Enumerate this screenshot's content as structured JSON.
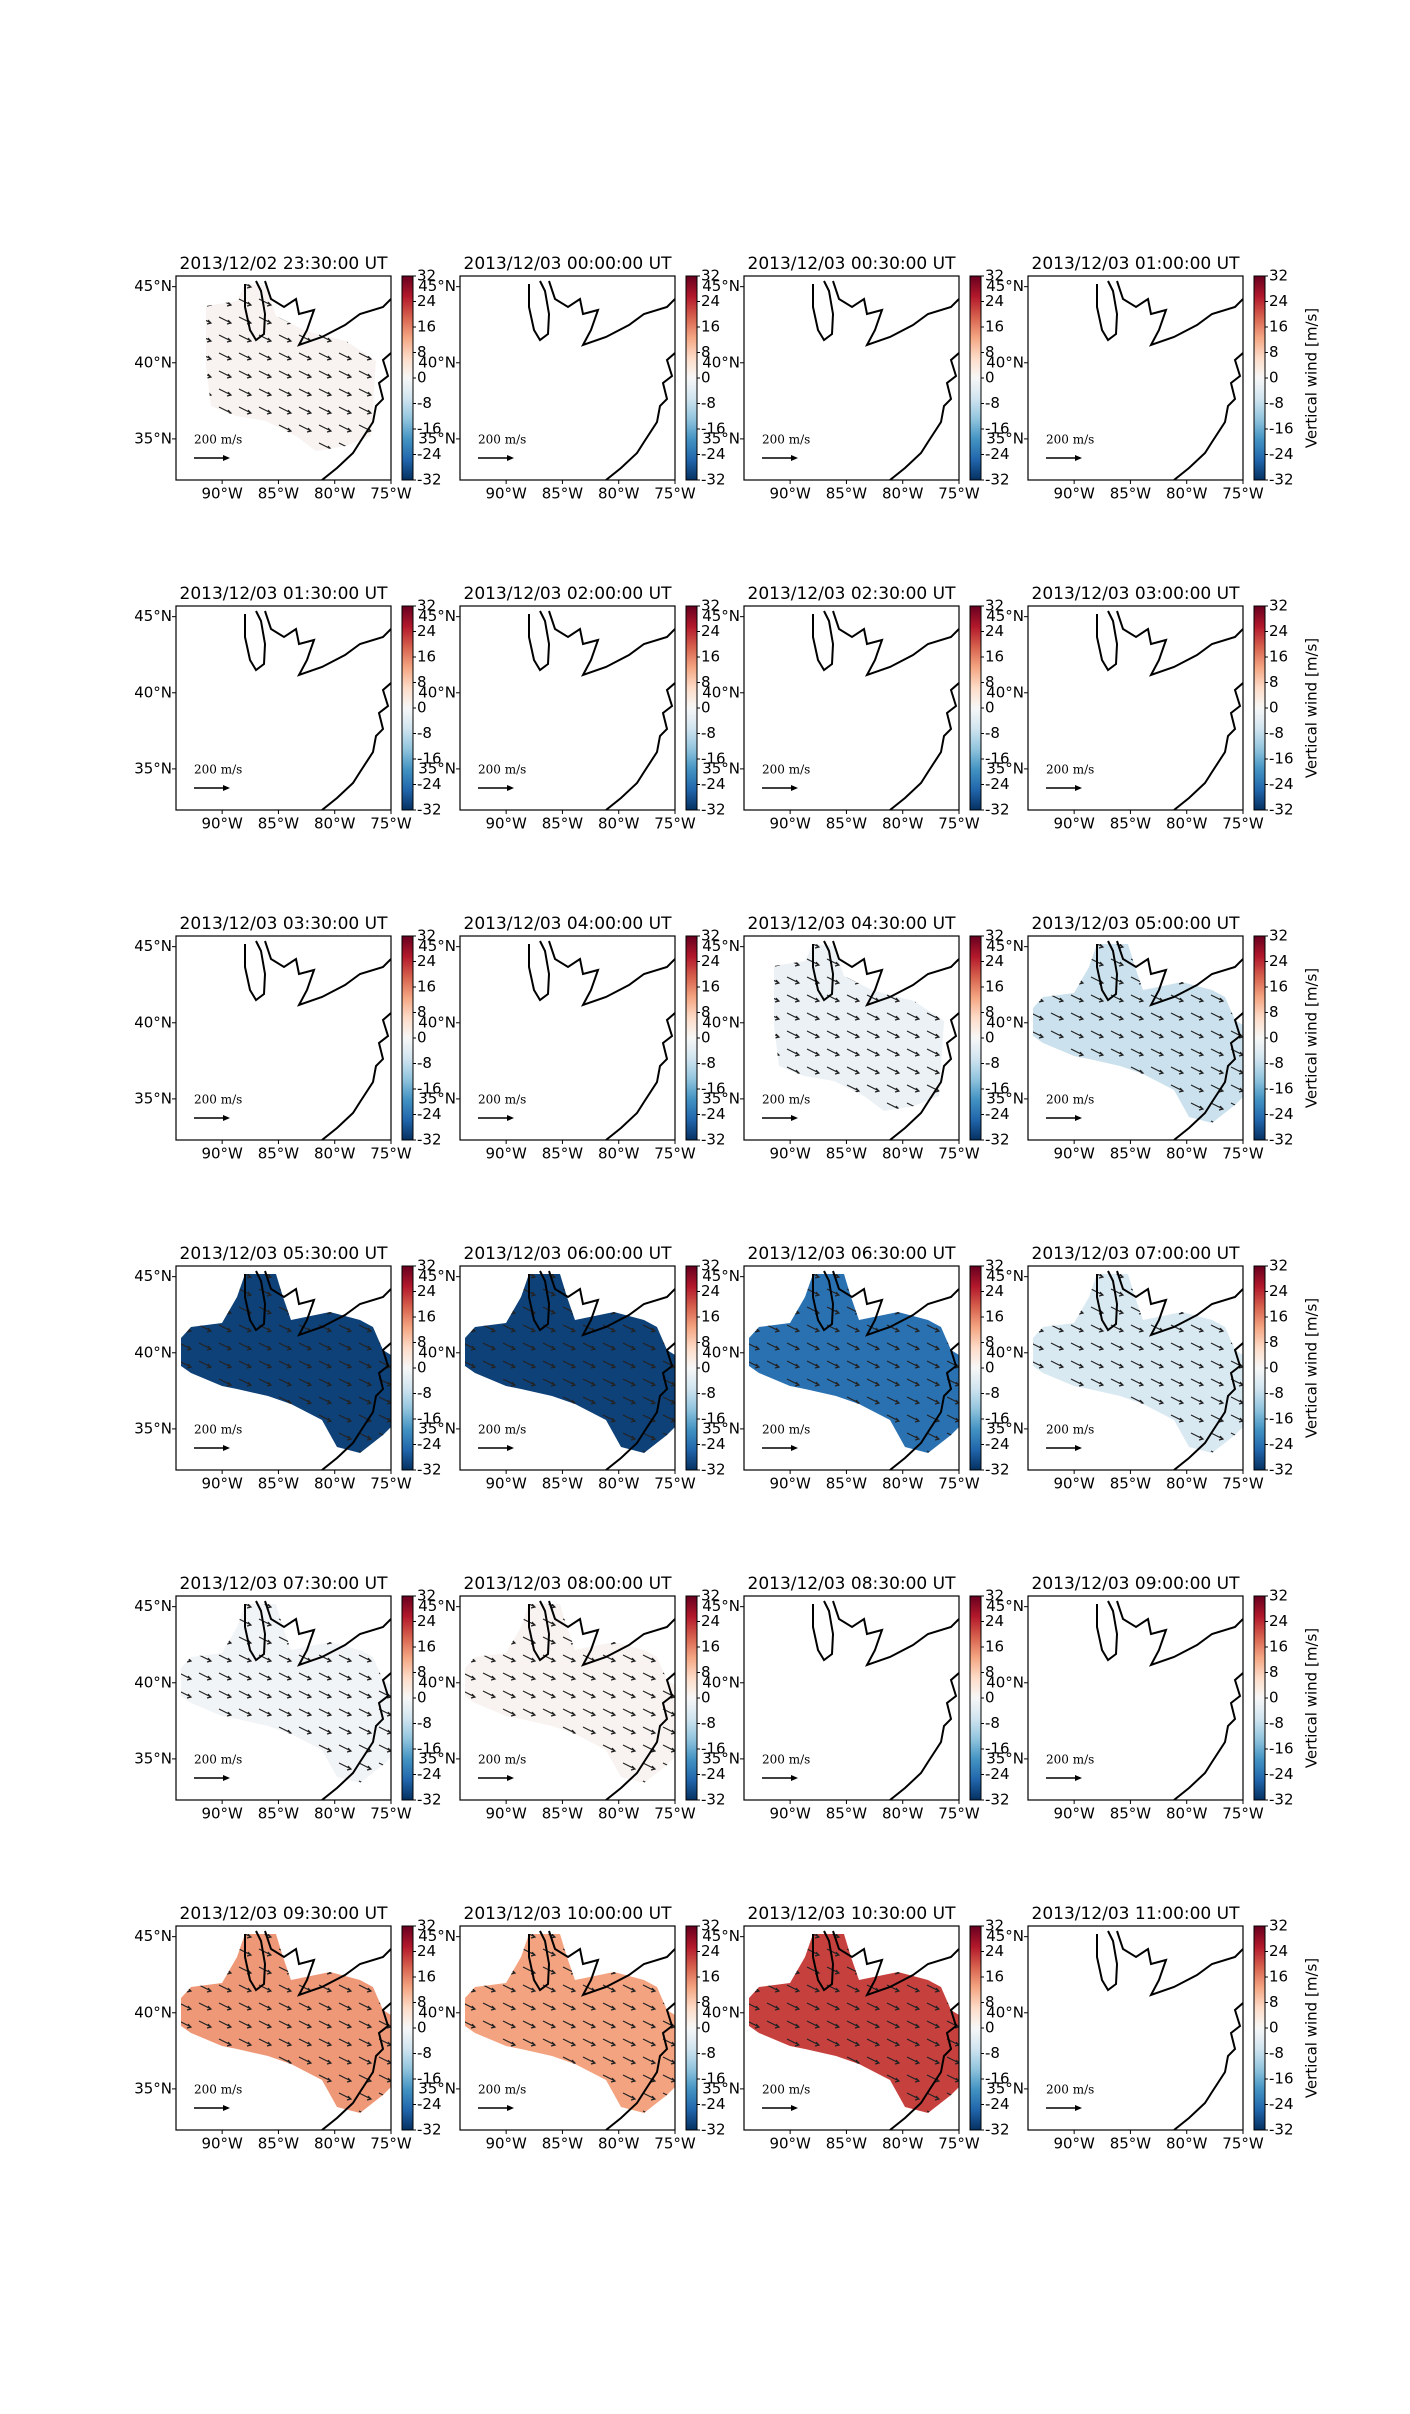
{
  "shared": {
    "xlim": [
      -94.1,
      -75
    ],
    "ylim": [
      32.3,
      45.7
    ],
    "xticks": [
      {
        "value": -90,
        "label": "90°W"
      },
      {
        "value": -85,
        "label": "85°W"
      },
      {
        "value": -80,
        "label": "80°W"
      },
      {
        "value": -75,
        "label": "75°W"
      }
    ],
    "yticks": [
      {
        "value": 35,
        "label": "35°N"
      },
      {
        "value": 40,
        "label": "40°N"
      },
      {
        "value": 45,
        "label": "45°N"
      }
    ],
    "clim": [
      -32,
      32
    ],
    "cticks": [
      -32,
      -24,
      -16,
      -8,
      0,
      8,
      16,
      24,
      32
    ],
    "colors": [
      "#053061",
      "#2166ac",
      "#4393c3",
      "#92c5de",
      "#d1e5f0",
      "#f7f7f7",
      "#fddbc7",
      "#f4a582",
      "#d6604d",
      "#b2182b",
      "#67001f"
    ],
    "reference_label": "200 m/s"
  },
  "chart_data": [
    {
      "type": "map",
      "title": "2013/12/02 23:30:00 UT",
      "value": 1
    },
    {
      "type": "map",
      "title": "2013/12/03 00:00:00 UT",
      "value": null
    },
    {
      "type": "map",
      "title": "2013/12/03 00:30:00 UT",
      "value": null
    },
    {
      "type": "map",
      "title": "2013/12/03 01:00:00 UT",
      "value": null,
      "colorbar_label": "Vertical wind [m/s]"
    },
    {
      "type": "map",
      "title": "2013/12/03 01:30:00 UT",
      "value": null
    },
    {
      "type": "map",
      "title": "2013/12/03 02:00:00 UT",
      "value": null
    },
    {
      "type": "map",
      "title": "2013/12/03 02:30:00 UT",
      "value": null
    },
    {
      "type": "map",
      "title": "2013/12/03 03:00:00 UT",
      "value": null,
      "colorbar_label": "Vertical wind [m/s]"
    },
    {
      "type": "map",
      "title": "2013/12/03 03:30:00 UT",
      "value": null
    },
    {
      "type": "map",
      "title": "2013/12/03 04:00:00 UT",
      "value": null
    },
    {
      "type": "map",
      "title": "2013/12/03 04:30:00 UT",
      "value": -2
    },
    {
      "type": "map",
      "title": "2013/12/03 05:00:00 UT",
      "value": -7,
      "colorbar_label": "Vertical wind [m/s]"
    },
    {
      "type": "map",
      "title": "2013/12/03 05:30:00 UT",
      "value": -30
    },
    {
      "type": "map",
      "title": "2013/12/03 06:00:00 UT",
      "value": -30
    },
    {
      "type": "map",
      "title": "2013/12/03 06:30:00 UT",
      "value": -24
    },
    {
      "type": "map",
      "title": "2013/12/03 07:00:00 UT",
      "value": -5,
      "colorbar_label": "Vertical wind [m/s]"
    },
    {
      "type": "map",
      "title": "2013/12/03 07:30:00 UT",
      "value": -1
    },
    {
      "type": "map",
      "title": "2013/12/03 08:00:00 UT",
      "value": 1
    },
    {
      "type": "map",
      "title": "2013/12/03 08:30:00 UT",
      "value": null
    },
    {
      "type": "map",
      "title": "2013/12/03 09:00:00 UT",
      "value": null,
      "colorbar_label": "Vertical wind [m/s]"
    },
    {
      "type": "map",
      "title": "2013/12/03 09:30:00 UT",
      "value": 14
    },
    {
      "type": "map",
      "title": "2013/12/03 10:00:00 UT",
      "value": 13
    },
    {
      "type": "map",
      "title": "2013/12/03 10:30:00 UT",
      "value": 22
    },
    {
      "type": "map",
      "title": "2013/12/03 11:00:00 UT",
      "value": null,
      "colorbar_label": "Vertical wind [m/s]"
    }
  ]
}
